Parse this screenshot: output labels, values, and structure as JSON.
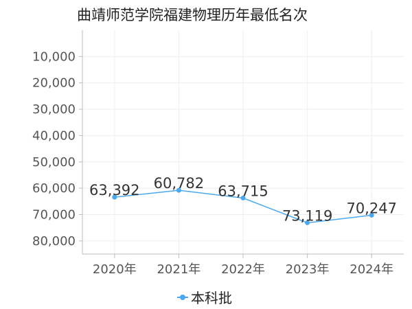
{
  "chart_data": {
    "type": "line",
    "title": "曲靖师范学院福建物理历年最低名次",
    "categories": [
      "2020年",
      "2021年",
      "2022年",
      "2023年",
      "2024年"
    ],
    "series": [
      {
        "name": "本科批",
        "values": [
          63392,
          60782,
          63715,
          73119,
          70247
        ],
        "labels": [
          "63,392",
          "60,782",
          "63,715",
          "73,119",
          "70,247"
        ]
      }
    ],
    "y_ticks": [
      "10,000",
      "20,000",
      "30,000",
      "40,000",
      "50,000",
      "60,000",
      "70,000",
      "80,000"
    ],
    "y_tick_values": [
      10000,
      20000,
      30000,
      40000,
      50000,
      60000,
      70000,
      80000
    ],
    "ylim": [
      0,
      85000
    ],
    "y_inverted": true,
    "grid": true,
    "legend_position": "bottom-center",
    "colors": {
      "series": "#4aa8f0",
      "grid": "#eeeeee",
      "axis": "#bbbbbb"
    }
  }
}
